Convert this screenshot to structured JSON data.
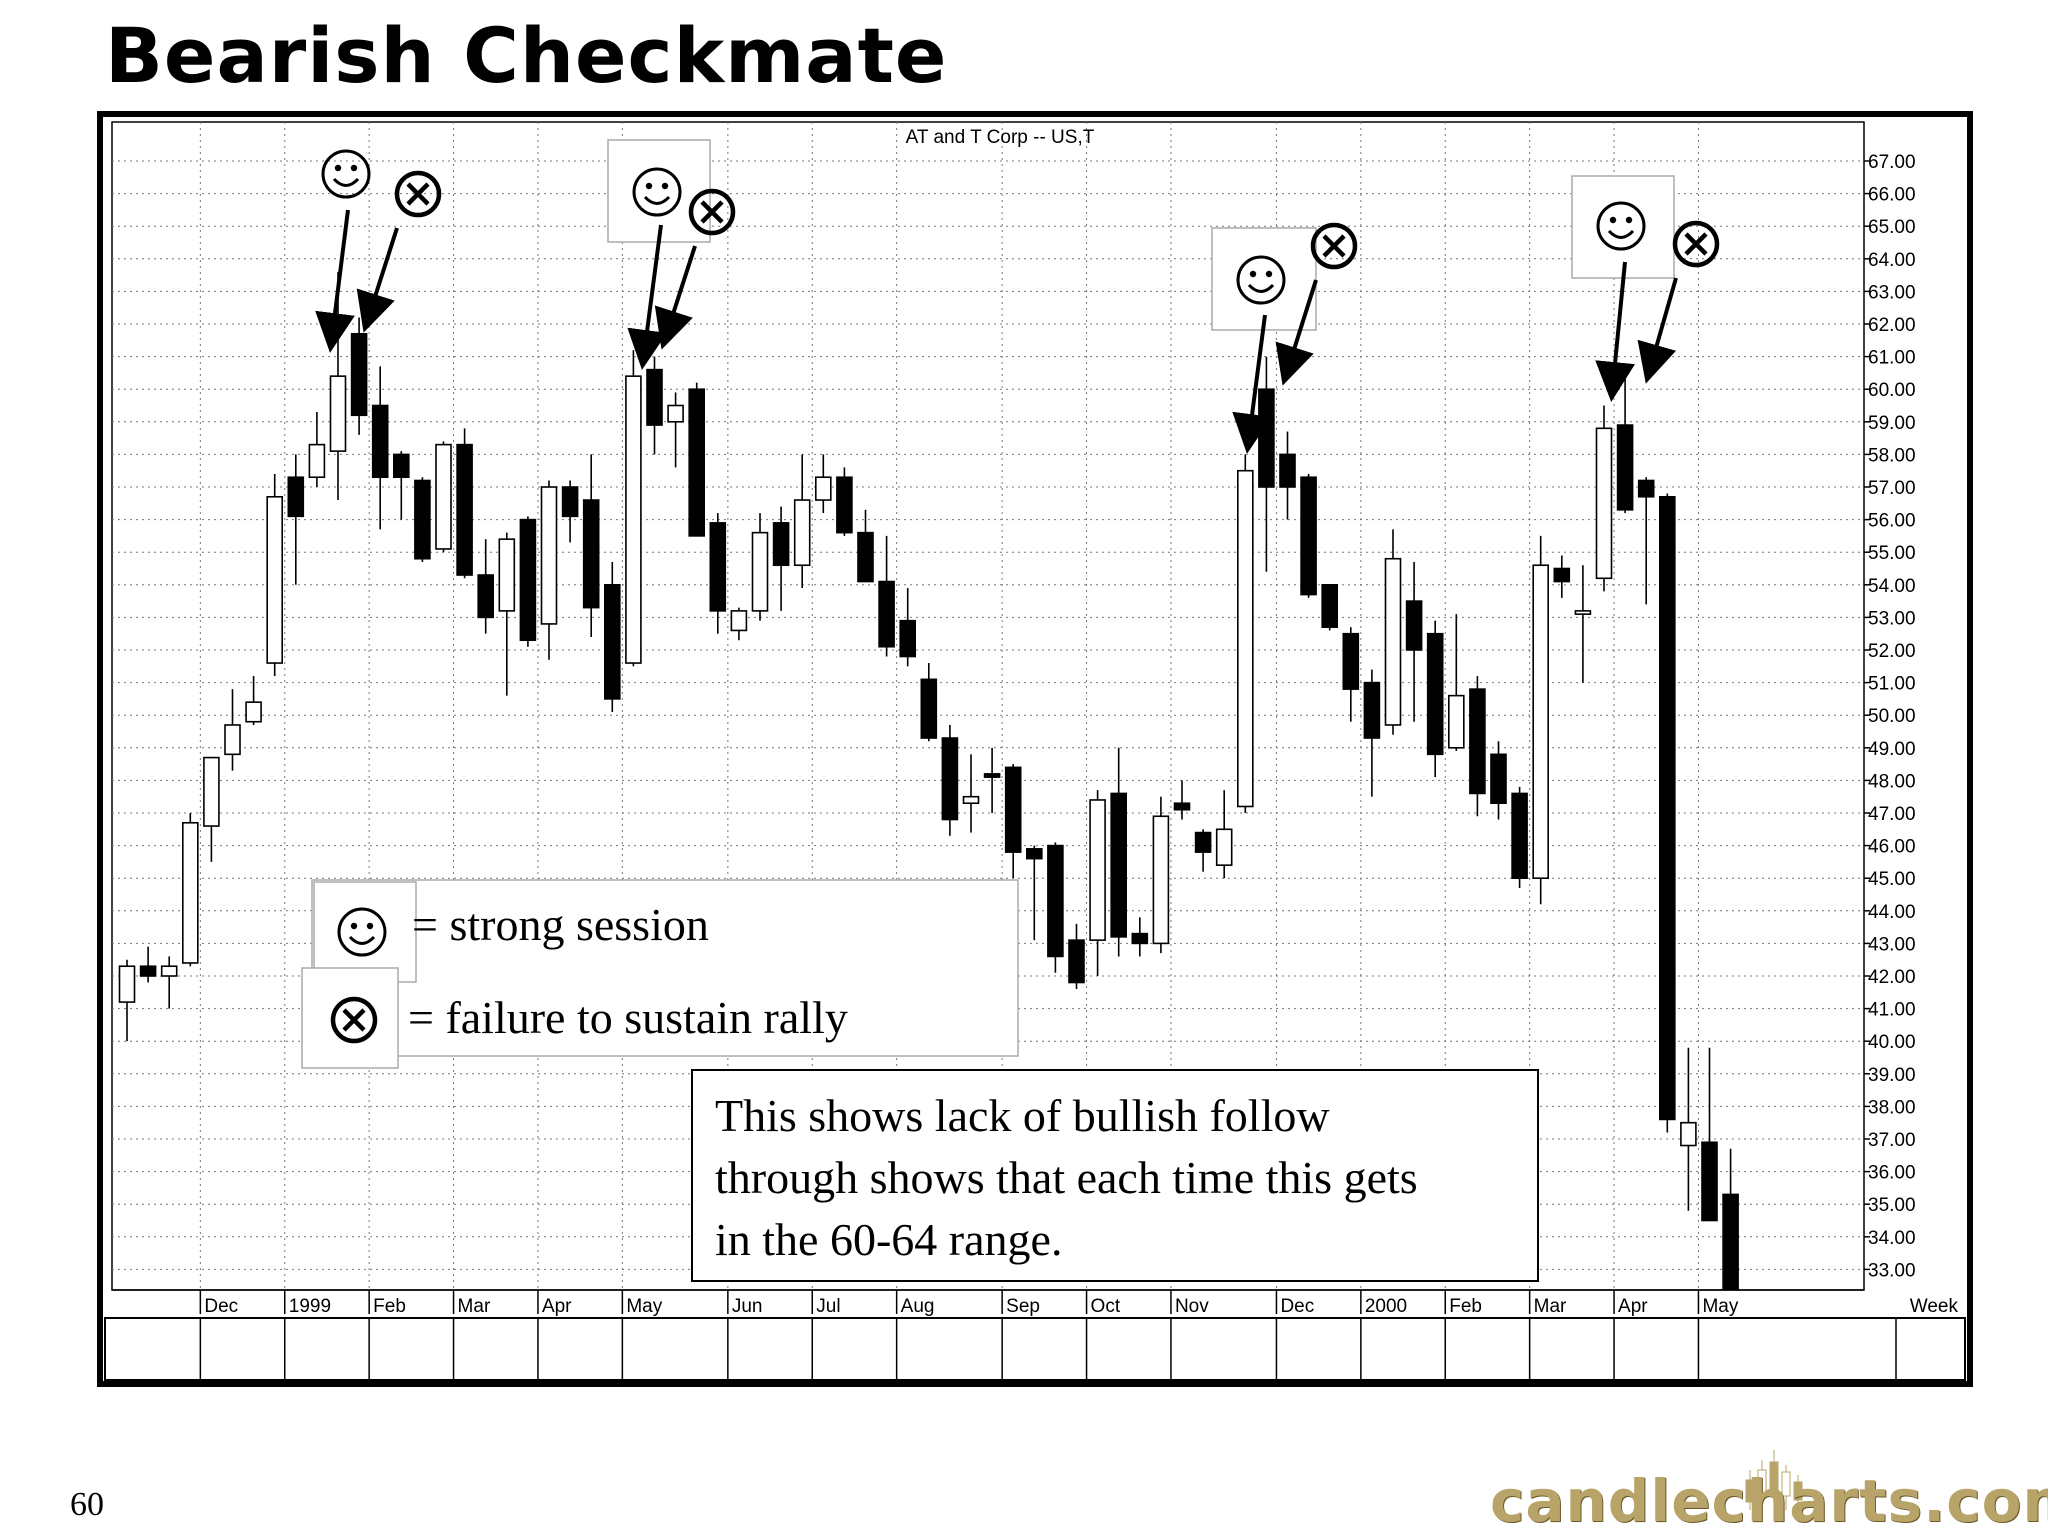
{
  "slide": {
    "title": "Bearish Checkmate",
    "page_number": "60",
    "logo": "candlecharts.com"
  },
  "legend": {
    "strong_label": "= strong session",
    "failure_label": "= failure to sustain rally"
  },
  "annotation": {
    "lines": [
      "This shows lack of bullish follow",
      "through shows that each time this gets",
      "in the 60-64 range."
    ]
  },
  "colors": {
    "bearish_body": "#000000",
    "bullish_body": "#ffffff",
    "frame": "#000000",
    "logo_gold": "#b8a468"
  },
  "chart_data": {
    "type": "candlestick",
    "title": "AT and T Corp -- US,T",
    "frequency_label": "Week",
    "ylim": [
      32,
      68
    ],
    "y_ticks": [
      "67.00",
      "66.00",
      "65.00",
      "64.00",
      "63.00",
      "62.00",
      "61.00",
      "60.00",
      "59.00",
      "58.00",
      "57.00",
      "56.00",
      "55.00",
      "54.00",
      "53.00",
      "52.00",
      "51.00",
      "50.00",
      "49.00",
      "48.00",
      "47.00",
      "46.00",
      "45.00",
      "44.00",
      "43.00",
      "42.00",
      "41.00",
      "40.00",
      "39.00",
      "38.00",
      "37.00",
      "36.00",
      "35.00",
      "34.00",
      "33.00"
    ],
    "x_labels": [
      "Dec",
      "1999",
      "Feb",
      "Mar",
      "Apr",
      "May",
      "Jun",
      "Jul",
      "Aug",
      "Sep",
      "Oct",
      "Nov",
      "Dec",
      "2000",
      "Feb",
      "Mar",
      "Apr",
      "May"
    ],
    "x_label_candle_index": [
      4,
      8,
      12,
      16,
      20,
      24,
      29,
      33,
      37,
      42,
      46,
      50,
      55,
      59,
      63,
      67,
      71,
      75
    ],
    "grid": true,
    "candles": [
      {
        "o": 41.2,
        "h": 42.5,
        "l": 40.0,
        "c": 42.3
      },
      {
        "o": 42.3,
        "h": 42.9,
        "l": 41.8,
        "c": 42.0
      },
      {
        "o": 42.0,
        "h": 42.6,
        "l": 41.0,
        "c": 42.3
      },
      {
        "o": 42.4,
        "h": 47.0,
        "l": 42.3,
        "c": 46.7
      },
      {
        "o": 46.6,
        "h": 48.6,
        "l": 45.5,
        "c": 48.7
      },
      {
        "o": 48.8,
        "h": 50.8,
        "l": 48.3,
        "c": 49.7
      },
      {
        "o": 49.8,
        "h": 51.2,
        "l": 49.7,
        "c": 50.4
      },
      {
        "o": 51.6,
        "h": 57.4,
        "l": 51.2,
        "c": 56.7
      },
      {
        "o": 57.3,
        "h": 58.0,
        "l": 54.0,
        "c": 56.1
      },
      {
        "o": 57.3,
        "h": 59.3,
        "l": 57.0,
        "c": 58.3
      },
      {
        "o": 58.1,
        "h": 63.6,
        "l": 56.6,
        "c": 60.4
      },
      {
        "o": 61.7,
        "h": 62.2,
        "l": 58.6,
        "c": 59.2
      },
      {
        "o": 59.5,
        "h": 60.7,
        "l": 55.7,
        "c": 57.3
      },
      {
        "o": 58.0,
        "h": 58.1,
        "l": 56.0,
        "c": 57.3
      },
      {
        "o": 57.2,
        "h": 57.3,
        "l": 54.7,
        "c": 54.8
      },
      {
        "o": 55.1,
        "h": 58.4,
        "l": 55.0,
        "c": 58.3
      },
      {
        "o": 58.3,
        "h": 58.8,
        "l": 54.2,
        "c": 54.3
      },
      {
        "o": 54.3,
        "h": 55.4,
        "l": 52.5,
        "c": 53.0
      },
      {
        "o": 53.2,
        "h": 55.6,
        "l": 50.6,
        "c": 55.4
      },
      {
        "o": 56.0,
        "h": 56.1,
        "l": 52.1,
        "c": 52.3
      },
      {
        "o": 52.8,
        "h": 57.2,
        "l": 51.7,
        "c": 57.0
      },
      {
        "o": 57.0,
        "h": 57.2,
        "l": 55.3,
        "c": 56.1
      },
      {
        "o": 56.6,
        "h": 58.0,
        "l": 52.4,
        "c": 53.3
      },
      {
        "o": 54.0,
        "h": 54.7,
        "l": 50.1,
        "c": 50.5
      },
      {
        "o": 51.6,
        "h": 61.2,
        "l": 51.5,
        "c": 60.4
      },
      {
        "o": 60.6,
        "h": 61.0,
        "l": 58.0,
        "c": 58.9
      },
      {
        "o": 59.0,
        "h": 59.9,
        "l": 57.6,
        "c": 59.5
      },
      {
        "o": 60.0,
        "h": 60.2,
        "l": 55.5,
        "c": 55.5
      },
      {
        "o": 55.9,
        "h": 56.2,
        "l": 52.5,
        "c": 53.2
      },
      {
        "o": 52.6,
        "h": 53.3,
        "l": 52.3,
        "c": 53.2
      },
      {
        "o": 53.2,
        "h": 56.2,
        "l": 52.9,
        "c": 55.6
      },
      {
        "o": 55.9,
        "h": 56.4,
        "l": 53.2,
        "c": 54.6
      },
      {
        "o": 54.6,
        "h": 58.0,
        "l": 53.9,
        "c": 56.6
      },
      {
        "o": 56.6,
        "h": 58.0,
        "l": 56.2,
        "c": 57.3
      },
      {
        "o": 57.3,
        "h": 57.6,
        "l": 55.5,
        "c": 55.6
      },
      {
        "o": 55.6,
        "h": 56.3,
        "l": 54.1,
        "c": 54.1
      },
      {
        "o": 54.1,
        "h": 55.5,
        "l": 51.8,
        "c": 52.1
      },
      {
        "o": 52.9,
        "h": 53.9,
        "l": 51.5,
        "c": 51.8
      },
      {
        "o": 51.1,
        "h": 51.6,
        "l": 49.2,
        "c": 49.3
      },
      {
        "o": 49.3,
        "h": 49.7,
        "l": 46.3,
        "c": 46.8
      },
      {
        "o": 47.3,
        "h": 48.8,
        "l": 46.4,
        "c": 47.5
      },
      {
        "o": 48.2,
        "h": 49.0,
        "l": 47.0,
        "c": 48.1
      },
      {
        "o": 48.4,
        "h": 48.5,
        "l": 45.0,
        "c": 45.8
      },
      {
        "o": 45.9,
        "h": 46.0,
        "l": 43.1,
        "c": 45.6
      },
      {
        "o": 46.0,
        "h": 46.1,
        "l": 42.1,
        "c": 42.6
      },
      {
        "o": 43.1,
        "h": 43.6,
        "l": 41.6,
        "c": 41.8
      },
      {
        "o": 43.1,
        "h": 47.7,
        "l": 42.0,
        "c": 47.4
      },
      {
        "o": 47.6,
        "h": 49.0,
        "l": 42.6,
        "c": 43.2
      },
      {
        "o": 43.3,
        "h": 43.8,
        "l": 42.6,
        "c": 43.0
      },
      {
        "o": 43.0,
        "h": 47.5,
        "l": 42.7,
        "c": 46.9
      },
      {
        "o": 47.3,
        "h": 48.0,
        "l": 46.8,
        "c": 47.1
      },
      {
        "o": 46.4,
        "h": 46.5,
        "l": 45.2,
        "c": 45.8
      },
      {
        "o": 45.4,
        "h": 47.7,
        "l": 45.0,
        "c": 46.5
      },
      {
        "o": 47.2,
        "h": 58.0,
        "l": 47.0,
        "c": 57.5
      },
      {
        "o": 60.0,
        "h": 61.0,
        "l": 54.4,
        "c": 57.0
      },
      {
        "o": 58.0,
        "h": 58.7,
        "l": 56.0,
        "c": 57.0
      },
      {
        "o": 57.3,
        "h": 57.4,
        "l": 53.6,
        "c": 53.7
      },
      {
        "o": 54.0,
        "h": 54.0,
        "l": 52.6,
        "c": 52.7
      },
      {
        "o": 52.5,
        "h": 52.7,
        "l": 49.8,
        "c": 50.8
      },
      {
        "o": 51.0,
        "h": 51.4,
        "l": 47.5,
        "c": 49.3
      },
      {
        "o": 49.7,
        "h": 55.7,
        "l": 49.4,
        "c": 54.8
      },
      {
        "o": 53.5,
        "h": 54.7,
        "l": 49.8,
        "c": 52.0
      },
      {
        "o": 52.5,
        "h": 52.9,
        "l": 48.1,
        "c": 48.8
      },
      {
        "o": 49.0,
        "h": 53.1,
        "l": 48.9,
        "c": 50.6
      },
      {
        "o": 50.8,
        "h": 51.2,
        "l": 46.9,
        "c": 47.6
      },
      {
        "o": 48.8,
        "h": 49.2,
        "l": 46.8,
        "c": 47.3
      },
      {
        "o": 47.6,
        "h": 47.8,
        "l": 44.7,
        "c": 45.0
      },
      {
        "o": 45.0,
        "h": 55.5,
        "l": 44.2,
        "c": 54.6
      },
      {
        "o": 54.5,
        "h": 54.9,
        "l": 53.6,
        "c": 54.1
      },
      {
        "o": 53.1,
        "h": 54.6,
        "l": 51.0,
        "c": 53.2
      },
      {
        "o": 54.2,
        "h": 59.5,
        "l": 53.8,
        "c": 58.8
      },
      {
        "o": 58.9,
        "h": 60.5,
        "l": 56.2,
        "c": 56.3
      },
      {
        "o": 57.2,
        "h": 57.3,
        "l": 53.4,
        "c": 56.7
      },
      {
        "o": 56.7,
        "h": 56.8,
        "l": 37.2,
        "c": 37.6
      },
      {
        "o": 36.8,
        "h": 39.8,
        "l": 34.8,
        "c": 37.5
      },
      {
        "o": 36.9,
        "h": 39.8,
        "l": 34.5,
        "c": 34.5
      },
      {
        "o": 35.3,
        "h": 36.7,
        "l": 32.5,
        "c": 32.4
      }
    ],
    "strong_session_candles": [
      10,
      24,
      53,
      70
    ],
    "failure_candles": [
      11,
      25,
      54,
      71
    ]
  }
}
